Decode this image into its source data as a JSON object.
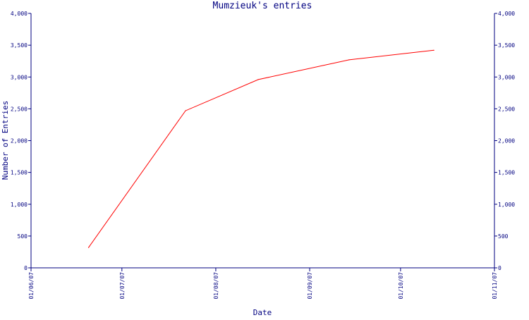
{
  "chart_data": {
    "type": "line",
    "title": "Mumzieuk's entries",
    "xlabel": "Date",
    "ylabel": "Number of Entries",
    "x_axis_type": "date",
    "x_ticks": [
      "01/06/07",
      "01/07/07",
      "01/08/07",
      "01/09/07",
      "01/10/07",
      "01/11/07"
    ],
    "y_ticks": [
      0,
      500,
      1000,
      1500,
      2000,
      2500,
      3000,
      3500,
      4000
    ],
    "y_tick_labels": [
      "0",
      "500",
      "1,000",
      "1,500",
      "2,000",
      "2,500",
      "3,000",
      "3,500",
      "4,000"
    ],
    "ylim": [
      0,
      4000
    ],
    "xlim": [
      "2007-06-01",
      "2007-11-01"
    ],
    "grid": false,
    "legend": "none",
    "colors": {
      "axis": "#000080",
      "text": "#000080",
      "series": "#ff0000",
      "background": "#ffffff"
    },
    "series": [
      {
        "x": [
          "2007-06-20",
          "2007-07-22",
          "2007-08-15",
          "2007-09-14",
          "2007-10-12"
        ],
        "values": [
          320,
          2470,
          2960,
          3270,
          3420
        ]
      }
    ]
  }
}
